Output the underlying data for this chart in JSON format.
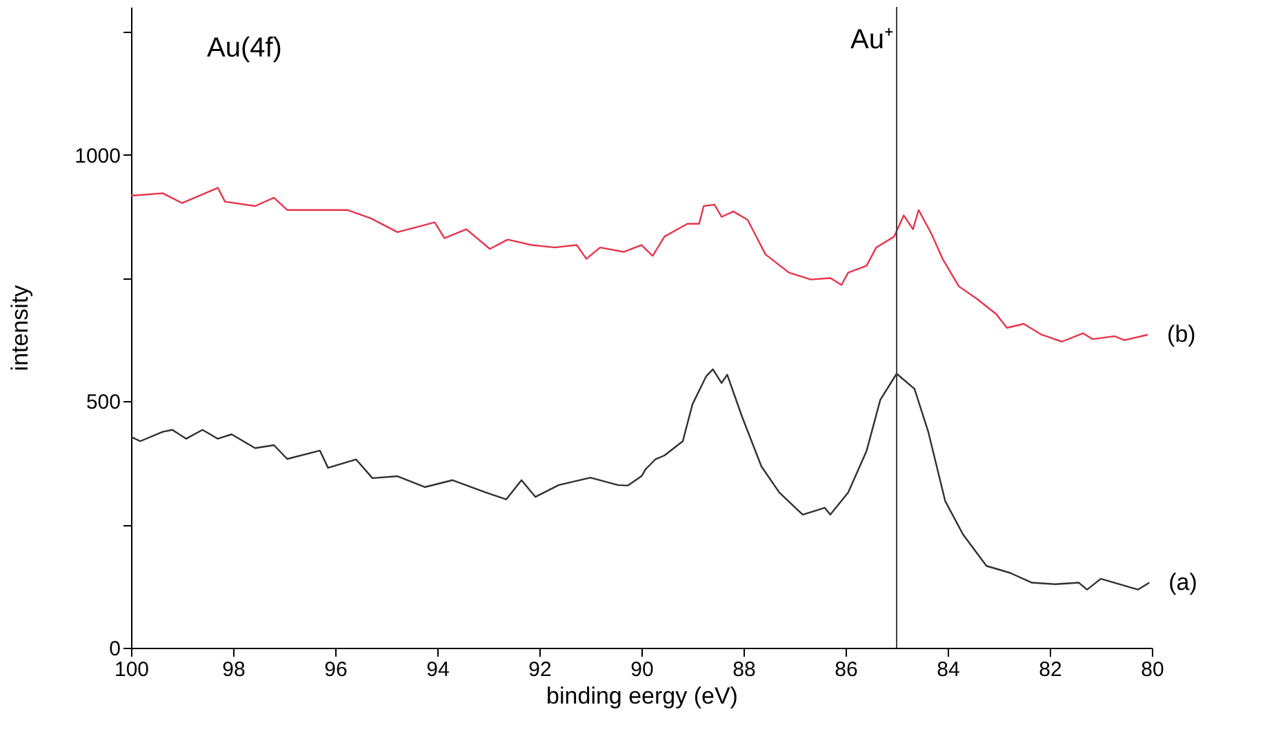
{
  "chart_data": {
    "type": "line",
    "xlabel": "binding eergy (eV)",
    "ylabel": "intensity",
    "annotations": [
      "Au(4f)"
    ],
    "xlim": [
      100,
      80
    ],
    "xticks": [
      100,
      98,
      96,
      94,
      92,
      90,
      88,
      86,
      84,
      82,
      80
    ],
    "ylim": [
      0,
      1300
    ],
    "yticks": [
      0,
      {
        "value": 250,
        "label": null
      },
      500,
      {
        "value": 750,
        "label": null
      },
      1000,
      {
        "value": 1250,
        "label": null
      }
    ],
    "grid": false,
    "marker": "none",
    "line_style": "solid",
    "ref_lines": [
      {
        "axis": "x",
        "value": 85,
        "label": "Au⁺",
        "color": "#404040"
      }
    ],
    "series": [
      {
        "name": "(a)",
        "color": "#303030",
        "x": [
          100,
          99.82,
          99.38,
          99.19,
          98.92,
          98.6,
          98.3,
          98.03,
          97.57,
          97.2,
          96.94,
          96.3,
          96.14,
          95.59,
          95.27,
          94.78,
          94.24,
          93.7,
          93.05,
          92.65,
          92.35,
          92.08,
          91.62,
          91.0,
          90.46,
          90.27,
          90.0,
          89.92,
          89.73,
          89.55,
          89.19,
          89.0,
          88.73,
          88.6,
          88.43,
          88.32,
          88.03,
          87.65,
          87.3,
          86.84,
          86.41,
          86.3,
          85.95,
          85.59,
          85.32,
          85.0,
          84.65,
          84.38,
          84.05,
          83.7,
          83.24,
          82.78,
          82.35,
          81.89,
          81.43,
          81.27,
          81.0,
          80.27,
          80.05
        ],
        "values": [
          428,
          419,
          438,
          442,
          424,
          442,
          424,
          433,
          405,
          411,
          383,
          400,
          365,
          382,
          344,
          348,
          326,
          340,
          315,
          301,
          340,
          306,
          330,
          345,
          330,
          329,
          348,
          362,
          382,
          390,
          419,
          494,
          551,
          565,
          537,
          554,
          469,
          368,
          315,
          270,
          284,
          270,
          315,
          399,
          503,
          556,
          525,
          438,
          298,
          230,
          166,
          152,
          132,
          129,
          132,
          118,
          140,
          118,
          132
        ]
      },
      {
        "name": "(b)",
        "color": "#e8334a",
        "x": [
          100,
          99.38,
          99.0,
          98.3,
          98.16,
          97.57,
          97.2,
          96.94,
          96.4,
          95.76,
          95.3,
          94.78,
          94.05,
          93.86,
          93.43,
          92.97,
          92.62,
          92.16,
          91.7,
          91.27,
          91.08,
          90.81,
          90.35,
          90.0,
          89.78,
          89.55,
          89.1,
          88.87,
          88.78,
          88.57,
          88.43,
          88.2,
          87.92,
          87.57,
          87.11,
          86.68,
          86.3,
          86.08,
          85.95,
          85.59,
          85.4,
          85.05,
          84.86,
          84.68,
          84.57,
          84.32,
          84.1,
          83.78,
          83.43,
          83.05,
          82.84,
          82.51,
          82.16,
          81.76,
          81.35,
          81.16,
          80.73,
          80.54,
          80.08
        ],
        "values": [
          917,
          922,
          902,
          933,
          905,
          896,
          913,
          888,
          888,
          888,
          871,
          843,
          863,
          831,
          849,
          809,
          828,
          817,
          812,
          817,
          789,
          812,
          803,
          817,
          795,
          834,
          860,
          860,
          896,
          899,
          874,
          885,
          868,
          798,
          761,
          747,
          750,
          736,
          761,
          775,
          812,
          834,
          877,
          849,
          888,
          840,
          789,
          733,
          708,
          677,
          649,
          657,
          635,
          621,
          638,
          626,
          632,
          624,
          635
        ]
      }
    ]
  }
}
